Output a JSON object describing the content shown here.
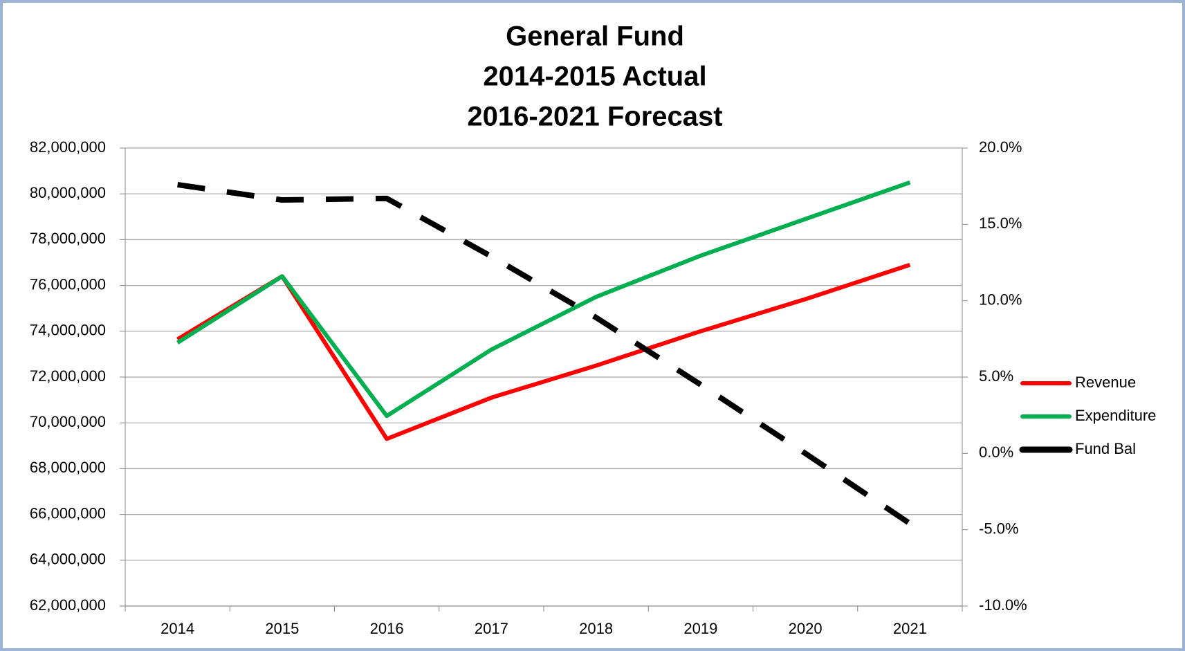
{
  "chart_data": {
    "type": "line",
    "title": [
      "General Fund",
      "2014-2015 Actual",
      "2016-2021 Forecast"
    ],
    "categories": [
      "2014",
      "2015",
      "2016",
      "2017",
      "2018",
      "2019",
      "2020",
      "2021"
    ],
    "series": [
      {
        "name": "Revenue",
        "color": "#ff0000",
        "style": "solid",
        "values": [
          73650000,
          76400000,
          69300000,
          71100000,
          72500000,
          74000000,
          75400000,
          76900000
        ]
      },
      {
        "name": "Expenditure",
        "color": "#00b050",
        "style": "solid",
        "values": [
          73500000,
          76400000,
          70300000,
          73200000,
          75500000,
          77300000,
          78900000,
          80500000
        ]
      },
      {
        "name": "Fund Bal",
        "color": "#000000",
        "style": "dashed",
        "axis": "y2",
        "values": [
          17.6,
          16.6,
          16.7,
          12.9,
          8.9,
          4.5,
          0.0,
          -4.6
        ]
      }
    ],
    "ylim": [
      62000000,
      82000000
    ],
    "yticks": [
      {
        "value": 62000000,
        "label": "62,000,000"
      },
      {
        "value": 64000000,
        "label": "64,000,000"
      },
      {
        "value": 66000000,
        "label": "66,000,000"
      },
      {
        "value": 68000000,
        "label": "68,000,000"
      },
      {
        "value": 70000000,
        "label": "70,000,000"
      },
      {
        "value": 72000000,
        "label": "72,000,000"
      },
      {
        "value": 74000000,
        "label": "74,000,000"
      },
      {
        "value": 76000000,
        "label": "76,000,000"
      },
      {
        "value": 78000000,
        "label": "78,000,000"
      },
      {
        "value": 80000000,
        "label": "80,000,000"
      },
      {
        "value": 82000000,
        "label": "82,000,000"
      }
    ],
    "y2lim": [
      -10,
      20
    ],
    "y2ticks": [
      {
        "value": -10,
        "label": "-10.0%"
      },
      {
        "value": -5,
        "label": "-5.0%"
      },
      {
        "value": 0,
        "label": "0.0%"
      },
      {
        "value": 5,
        "label": "5.0%"
      },
      {
        "value": 10,
        "label": "10.0%"
      },
      {
        "value": 15,
        "label": "15.0%"
      },
      {
        "value": 20,
        "label": "20.0%"
      }
    ],
    "grid": true,
    "legend": "right"
  }
}
